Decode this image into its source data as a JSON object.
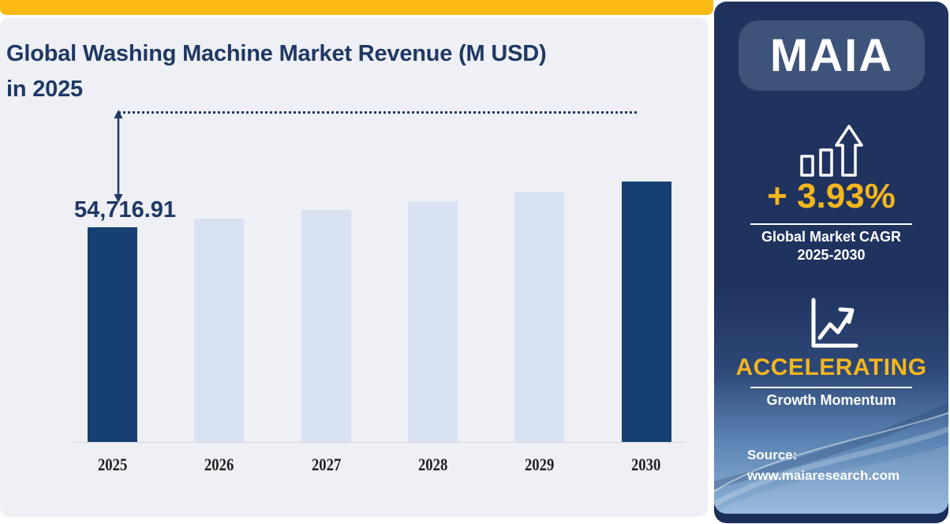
{
  "header": {
    "title_line1": "Global Washing Machine Market Revenue (M USD)",
    "title_line2": "in 2025",
    "title_color": "#1F3864",
    "accent_bar_color": "#FDB913"
  },
  "chart_data": {
    "type": "bar",
    "title": "Global Washing Machine Market Revenue (M USD) in 2025",
    "categories": [
      "2025",
      "2026",
      "2027",
      "2028",
      "2029",
      "2030"
    ],
    "values": [
      54716.91,
      56867.28,
      59102.16,
      61424.87,
      63838.87,
      66347.74
    ],
    "highlight": [
      true,
      false,
      false,
      false,
      false,
      true
    ],
    "value_labels": {
      "2025": "54,716.91"
    },
    "xlabel": "",
    "ylabel": "",
    "ylim": [
      0,
      66500
    ],
    "grid": false,
    "legend": false,
    "bar_color_highlight": "#163F72",
    "bar_color_default": "#D9E2F3",
    "axis_line_color": "#D6D6D6",
    "annotation_color": "#1F3864"
  },
  "sidebar": {
    "logo_text": "MAIA",
    "cagr_value": "+ 3.93%",
    "cagr_label_line1": "Global Market CAGR",
    "cagr_label_line2": "2025-2030",
    "momentum_value": "ACCELERATING",
    "momentum_label": "Growth Momentum",
    "source_label": "Source:",
    "source_url": "www.maiaresearch.com",
    "gold_color": "#F5B61E",
    "navy_color": "#20335F",
    "icons": {
      "bar_growth_icon": "outlined bars with up block arrow",
      "trend_line_icon": "line chart axes with rising zigzag arrow"
    }
  }
}
